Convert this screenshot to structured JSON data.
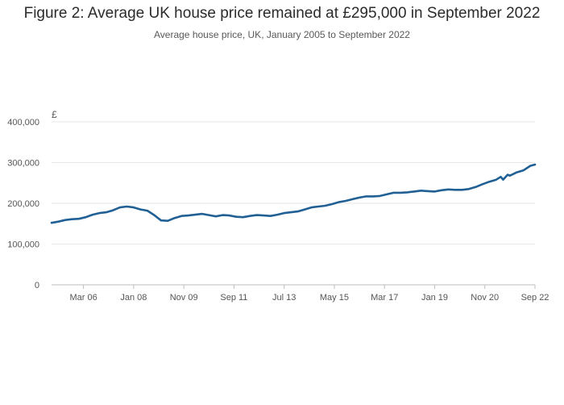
{
  "title": "Figure 2: Average UK house price remained at £295,000 in September 2022",
  "subtitle": "Average house price, UK, January 2005 to September 2022",
  "chart_data": {
    "type": "line",
    "title": "Figure 2: Average UK house price remained at £295,000 in September 2022",
    "subtitle": "Average house price, UK, January 2005 to September 2022",
    "y_unit": "£",
    "ylim": [
      0,
      400000
    ],
    "y_ticks": [
      0,
      100000,
      200000,
      300000,
      400000
    ],
    "y_tick_labels": [
      "0",
      "100,000",
      "200,000",
      "300,000",
      "400,000"
    ],
    "x_ticks": [
      "2006-03",
      "2008-01",
      "2009-11",
      "2011-09",
      "2013-07",
      "2015-05",
      "2017-03",
      "2019-01",
      "2020-11",
      "2022-09"
    ],
    "x_tick_labels": [
      "Mar 06",
      "Jan 08",
      "Nov 09",
      "Sep 11",
      "Jul 13",
      "May 15",
      "Mar 17",
      "Jan 19",
      "Nov 20",
      "Sep 22"
    ],
    "grid": true,
    "line_color": "#206095",
    "series": [
      {
        "x": [
          "2005-01",
          "2005-04",
          "2005-07",
          "2005-10",
          "2006-01",
          "2006-04",
          "2006-07",
          "2006-10",
          "2007-01",
          "2007-04",
          "2007-07",
          "2007-10",
          "2008-01",
          "2008-04",
          "2008-07",
          "2008-10",
          "2009-01",
          "2009-04",
          "2009-07",
          "2009-10",
          "2010-01",
          "2010-04",
          "2010-07",
          "2010-10",
          "2011-01",
          "2011-04",
          "2011-07",
          "2011-10",
          "2012-01",
          "2012-04",
          "2012-07",
          "2012-10",
          "2013-01",
          "2013-04",
          "2013-07",
          "2013-10",
          "2014-01",
          "2014-04",
          "2014-07",
          "2014-10",
          "2015-01",
          "2015-04",
          "2015-07",
          "2015-10",
          "2016-01",
          "2016-04",
          "2016-07",
          "2016-10",
          "2017-01",
          "2017-04",
          "2017-07",
          "2017-10",
          "2018-01",
          "2018-04",
          "2018-07",
          "2018-10",
          "2019-01",
          "2019-04",
          "2019-07",
          "2019-10",
          "2020-01",
          "2020-04",
          "2020-07",
          "2020-10",
          "2021-01",
          "2021-04",
          "2021-06",
          "2021-07",
          "2021-09",
          "2021-10",
          "2022-01",
          "2022-04",
          "2022-07",
          "2022-09"
        ],
        "values": [
          152000,
          155000,
          159000,
          161000,
          162000,
          166000,
          172000,
          176000,
          178000,
          183000,
          190000,
          192000,
          190000,
          185000,
          182000,
          171000,
          158000,
          157000,
          164000,
          169000,
          170000,
          172000,
          174000,
          171000,
          168000,
          171000,
          170000,
          167000,
          166000,
          169000,
          171000,
          170000,
          169000,
          172000,
          176000,
          178000,
          180000,
          185000,
          190000,
          192000,
          194000,
          198000,
          203000,
          206000,
          210000,
          214000,
          217000,
          217000,
          218000,
          222000,
          226000,
          226000,
          227000,
          229000,
          231000,
          230000,
          229000,
          232000,
          234000,
          233000,
          233000,
          235000,
          240000,
          247000,
          253000,
          258000,
          265000,
          258000,
          270000,
          268000,
          276000,
          281000,
          292000,
          295000
        ]
      }
    ]
  }
}
